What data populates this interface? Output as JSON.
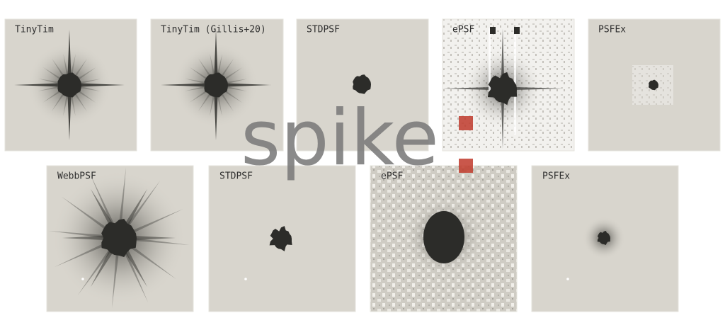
{
  "logo": "spike",
  "top_row": [
    "TinyTim",
    "TinyTim (Gillis+20)",
    "STDPSF",
    "ePSF",
    "PSFEx"
  ],
  "bottom_row": [
    "WebbPSF",
    "STDPSF",
    "ePSF",
    "PSFEx"
  ]
}
